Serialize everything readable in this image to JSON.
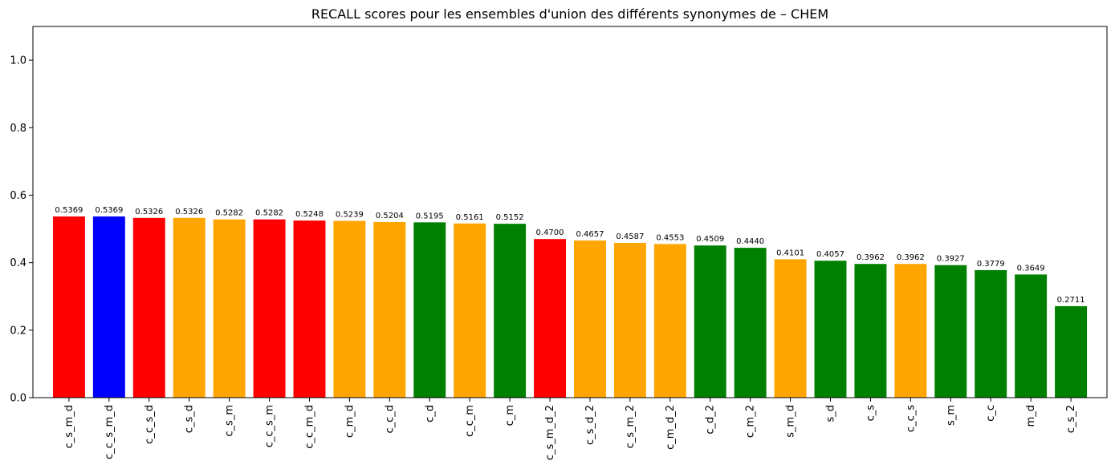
{
  "chart_data": {
    "type": "bar",
    "title": "RECALL scores pour les ensembles d'union des différents synonymes de – CHEM",
    "xlabel": "",
    "ylabel": "",
    "ylim": [
      0,
      1.1
    ],
    "yticks": [
      0.0,
      0.2,
      0.4,
      0.6,
      0.8,
      1.0
    ],
    "grid": false,
    "categories": [
      "c_s_m_d",
      "c_c_s_m_d",
      "c_c_s_d",
      "c_s_d",
      "c_s_m",
      "c_c_s_m",
      "c_c_m_d",
      "c_m_d",
      "c_c_d",
      "c_d",
      "c_c_m",
      "c_m",
      "c_s_m_d_2",
      "c_s_d_2",
      "c_s_m_2",
      "c_m_d_2",
      "c_d_2",
      "c_m_2",
      "s_m_d",
      "s_d",
      "c_s",
      "c_c_s",
      "s_m",
      "c_c",
      "m_d",
      "c_s_2"
    ],
    "values": [
      0.5369,
      0.5369,
      0.5326,
      0.5326,
      0.5282,
      0.5282,
      0.5248,
      0.5239,
      0.5204,
      0.5195,
      0.5161,
      0.5152,
      0.47,
      0.4657,
      0.4587,
      0.4553,
      0.4509,
      0.444,
      0.4101,
      0.4057,
      0.3962,
      0.3962,
      0.3927,
      0.3779,
      0.3649,
      0.2711
    ],
    "value_labels": [
      "0.5369",
      "0.5369",
      "0.5326",
      "0.5326",
      "0.5282",
      "0.5282",
      "0.5248",
      "0.5239",
      "0.5204",
      "0.5195",
      "0.5161",
      "0.5152",
      "0.4700",
      "0.4657",
      "0.4587",
      "0.4553",
      "0.4509",
      "0.4440",
      "0.4101",
      "0.4057",
      "0.3962",
      "0.3962",
      "0.3927",
      "0.3779",
      "0.3649",
      "0.2711"
    ],
    "colors": [
      "#ff0000",
      "#0000ff",
      "#ff0000",
      "#ffa500",
      "#ffa500",
      "#ff0000",
      "#ff0000",
      "#ffa500",
      "#ffa500",
      "#008000",
      "#ffa500",
      "#008000",
      "#ff0000",
      "#ffa500",
      "#ffa500",
      "#ffa500",
      "#008000",
      "#008000",
      "#ffa500",
      "#008000",
      "#008000",
      "#ffa500",
      "#008000",
      "#008000",
      "#008000",
      "#008000"
    ]
  }
}
